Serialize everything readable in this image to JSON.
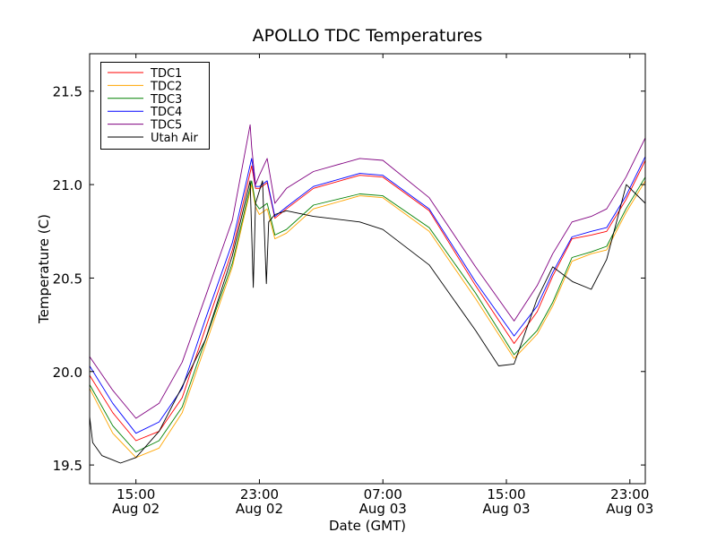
{
  "chart_data": {
    "type": "line",
    "title": "APOLLO TDC Temperatures",
    "xlabel": "Date (GMT)",
    "ylabel": "Temperature (C)",
    "x_unit": "hours since Aug 02 00:00 GMT",
    "xlim": [
      12,
      48
    ],
    "ylim": [
      19.4,
      21.7
    ],
    "grid": false,
    "legend_position": "top-left",
    "yticks": [
      19.5,
      20.0,
      20.5,
      21.0,
      21.5
    ],
    "ytick_labels": [
      "19.5",
      "20.0",
      "20.5",
      "21.0",
      "21.5"
    ],
    "xticks": [
      15,
      23,
      31,
      39,
      47
    ],
    "xtick_labels": [
      {
        "time": "15:00",
        "date": "Aug 02"
      },
      {
        "time": "23:00",
        "date": "Aug 02"
      },
      {
        "time": "07:00",
        "date": "Aug 03"
      },
      {
        "time": "15:00",
        "date": "Aug 03"
      },
      {
        "time": "23:00",
        "date": "Aug 03"
      }
    ],
    "series": [
      {
        "name": "TDC1",
        "color": "#ff0000",
        "x": [
          12,
          13.5,
          15,
          16.5,
          18,
          19.5,
          21.25,
          22.5,
          22.75,
          23,
          23.5,
          24,
          24.75,
          26.5,
          29.5,
          31,
          34,
          37,
          39.5,
          41,
          42,
          43.25,
          44.5,
          45.5,
          46.75,
          48
        ],
        "y": [
          19.98,
          19.78,
          19.63,
          19.68,
          19.86,
          20.23,
          20.65,
          21.1,
          20.98,
          20.98,
          21.01,
          20.82,
          20.87,
          20.98,
          21.05,
          21.04,
          20.86,
          20.46,
          20.15,
          20.32,
          20.51,
          20.71,
          20.73,
          20.75,
          20.92,
          21.13
        ]
      },
      {
        "name": "TDC2",
        "color": "#ffa500",
        "x": [
          12,
          13.5,
          15,
          16.5,
          18,
          19.5,
          21.25,
          22.5,
          22.75,
          23,
          23.5,
          24,
          24.75,
          26.5,
          29.5,
          31,
          34,
          37,
          39.5,
          41,
          42,
          43.25,
          44.5,
          45.5,
          46.75,
          48
        ],
        "y": [
          19.91,
          19.67,
          19.54,
          19.59,
          19.78,
          20.14,
          20.56,
          21.0,
          20.88,
          20.84,
          20.87,
          20.71,
          20.74,
          20.87,
          20.94,
          20.93,
          20.75,
          20.39,
          20.07,
          20.2,
          20.35,
          20.59,
          20.63,
          20.65,
          20.85,
          21.02
        ]
      },
      {
        "name": "TDC3",
        "color": "#008000",
        "x": [
          12,
          13.5,
          15,
          16.5,
          18,
          19.5,
          21.25,
          22.5,
          22.75,
          23,
          23.5,
          24,
          24.75,
          26.5,
          29.5,
          31,
          34,
          37,
          39.5,
          41,
          42,
          43.25,
          44.5,
          45.5,
          46.75,
          48
        ],
        "y": [
          19.93,
          19.71,
          19.57,
          19.63,
          19.81,
          20.17,
          20.58,
          21.02,
          20.9,
          20.87,
          20.9,
          20.73,
          20.76,
          20.89,
          20.95,
          20.94,
          20.77,
          20.42,
          20.09,
          20.22,
          20.37,
          20.61,
          20.64,
          20.67,
          20.87,
          21.04
        ]
      },
      {
        "name": "TDC4",
        "color": "#0000ff",
        "x": [
          12,
          13.5,
          15,
          16.5,
          18,
          19.5,
          21.25,
          22.5,
          22.75,
          23,
          23.5,
          24,
          24.75,
          26.5,
          29.5,
          31,
          34,
          37,
          39.5,
          41,
          42,
          43.25,
          44.5,
          45.5,
          46.75,
          48
        ],
        "y": [
          20.03,
          19.83,
          19.67,
          19.73,
          19.91,
          20.28,
          20.69,
          21.14,
          20.99,
          20.99,
          21.02,
          20.83,
          20.88,
          20.99,
          21.06,
          21.05,
          20.87,
          20.48,
          20.19,
          20.35,
          20.53,
          20.72,
          20.75,
          20.77,
          20.94,
          21.15
        ]
      },
      {
        "name": "TDC5",
        "color": "#800080",
        "x": [
          12,
          13.5,
          15,
          16.5,
          18,
          19.5,
          21.25,
          22.4,
          22.5,
          22.75,
          23,
          23.5,
          24,
          24.75,
          26.5,
          29.5,
          31,
          34,
          37,
          39.5,
          41,
          42,
          43.25,
          44.5,
          45.5,
          46.75,
          48
        ],
        "y": [
          20.08,
          19.9,
          19.75,
          19.83,
          20.05,
          20.4,
          20.81,
          21.32,
          21.2,
          21.0,
          21.05,
          21.14,
          20.9,
          20.98,
          21.07,
          21.14,
          21.13,
          20.93,
          20.56,
          20.27,
          20.46,
          20.63,
          20.8,
          20.83,
          20.87,
          21.04,
          21.25
        ]
      },
      {
        "name": "Utah Air",
        "color": "#000000",
        "x": [
          12,
          12.2,
          12.8,
          14,
          15,
          16.5,
          18,
          19.5,
          21.25,
          22.4,
          22.6,
          22.75,
          23.2,
          23.45,
          23.6,
          24,
          24.75,
          26.5,
          29.5,
          31,
          34,
          37,
          38.5,
          39.5,
          41,
          42,
          43.3,
          44.5,
          45.5,
          46.77,
          48
        ],
        "y": [
          19.76,
          19.62,
          19.55,
          19.51,
          19.54,
          19.68,
          19.92,
          20.17,
          20.62,
          21.02,
          20.45,
          20.9,
          21.02,
          20.47,
          20.8,
          20.84,
          20.86,
          20.83,
          20.8,
          20.76,
          20.57,
          20.22,
          20.03,
          20.04,
          20.39,
          20.56,
          20.48,
          20.44,
          20.6,
          21.0,
          20.9
        ]
      }
    ]
  }
}
